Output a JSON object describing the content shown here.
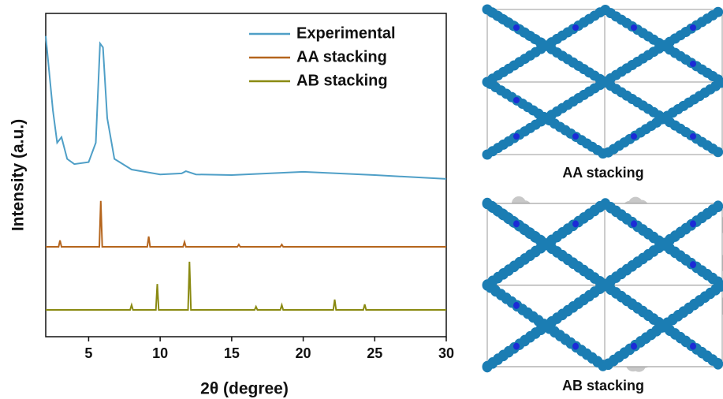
{
  "chart_data": {
    "type": "line",
    "xlabel": "2θ (degree)",
    "ylabel": "Intensity (a.u.)",
    "xlim": [
      2,
      30
    ],
    "xticks": [
      5,
      10,
      15,
      20,
      25,
      30
    ],
    "ylim": [
      0,
      100
    ],
    "legend": "upper right",
    "series": [
      {
        "name": "Experimental",
        "color": "#4f9fc7",
        "x": [
          2,
          2.5,
          2.8,
          3.1,
          3.5,
          4,
          5,
          5.5,
          5.8,
          6.0,
          6.3,
          6.8,
          8,
          10,
          11.5,
          11.8,
          12.5,
          15,
          20,
          25,
          30
        ],
        "values": [
          93,
          70,
          60,
          61.7,
          55,
          53.4,
          54,
          60,
          90.7,
          89.5,
          67.6,
          55,
          51.7,
          50.2,
          50.5,
          51.2,
          50.2,
          50,
          51,
          50,
          48.8
        ]
      },
      {
        "name": "AA stacking",
        "color": "#b5651d",
        "x": [
          2,
          2.9,
          3.0,
          3.1,
          5.75,
          5.85,
          5.95,
          9.1,
          9.2,
          9.3,
          11.6,
          11.7,
          11.8,
          15.4,
          15.5,
          15.6,
          18.4,
          18.5,
          18.6,
          30
        ],
        "values": [
          27.8,
          27.8,
          29.8,
          27.8,
          27.8,
          42,
          27.8,
          27.8,
          31,
          27.8,
          27.8,
          29.3,
          27.8,
          27.8,
          28.5,
          27.8,
          27.8,
          28.5,
          27.8,
          27.8
        ]
      },
      {
        "name": "AB stacking",
        "color": "#8a8a12",
        "x": [
          2,
          7.9,
          8.0,
          8.1,
          9.7,
          9.8,
          9.9,
          11.95,
          12.05,
          12.15,
          16.6,
          16.7,
          16.8,
          18.4,
          18.5,
          18.6,
          22.1,
          22.2,
          22.3,
          24.2,
          24.3,
          24.4,
          30
        ],
        "values": [
          8.3,
          8.3,
          9.8,
          8.3,
          8.3,
          16.3,
          8.3,
          8.3,
          23.2,
          8.3,
          8.3,
          9.3,
          8.3,
          8.3,
          9.8,
          8.3,
          8.3,
          11.5,
          8.3,
          8.3,
          10,
          8.3,
          8.3
        ]
      }
    ]
  },
  "structure_captions": [
    "AA stacking",
    "AB stacking"
  ]
}
